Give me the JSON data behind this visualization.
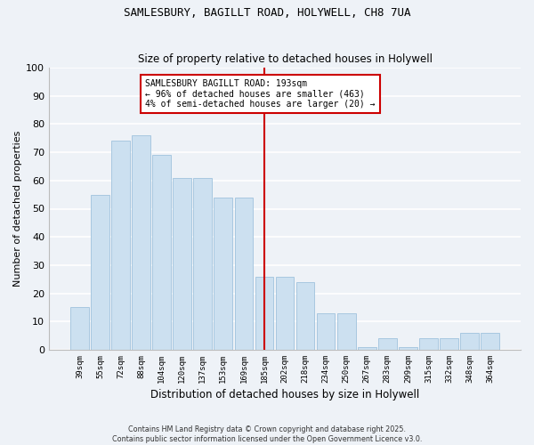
{
  "title1": "SAMLESBURY, BAGILLT ROAD, HOLYWELL, CH8 7UA",
  "title2": "Size of property relative to detached houses in Holywell",
  "xlabel": "Distribution of detached houses by size in Holywell",
  "ylabel": "Number of detached properties",
  "categories": [
    "39sqm",
    "55sqm",
    "72sqm",
    "88sqm",
    "104sqm",
    "120sqm",
    "137sqm",
    "153sqm",
    "169sqm",
    "185sqm",
    "202sqm",
    "218sqm",
    "234sqm",
    "250sqm",
    "267sqm",
    "283sqm",
    "299sqm",
    "315sqm",
    "332sqm",
    "348sqm",
    "364sqm"
  ],
  "values": [
    15,
    55,
    74,
    76,
    69,
    61,
    61,
    54,
    54,
    26,
    26,
    24,
    13,
    13,
    1,
    4,
    1,
    4,
    4,
    6,
    6
  ],
  "bar_color": "#cce0f0",
  "bar_edge_color": "#a8c8e0",
  "vline_x_index": 9,
  "vline_color": "#cc0000",
  "ylim": [
    0,
    100
  ],
  "annotation_title": "SAMLESBURY BAGILLT ROAD: 193sqm",
  "annotation_line1": "← 96% of detached houses are smaller (463)",
  "annotation_line2": "4% of semi-detached houses are larger (20) →",
  "annotation_box_color": "#ffffff",
  "annotation_border_color": "#cc0000",
  "footer1": "Contains HM Land Registry data © Crown copyright and database right 2025.",
  "footer2": "Contains public sector information licensed under the Open Government Licence v3.0.",
  "background_color": "#eef2f7",
  "grid_color": "#ffffff"
}
